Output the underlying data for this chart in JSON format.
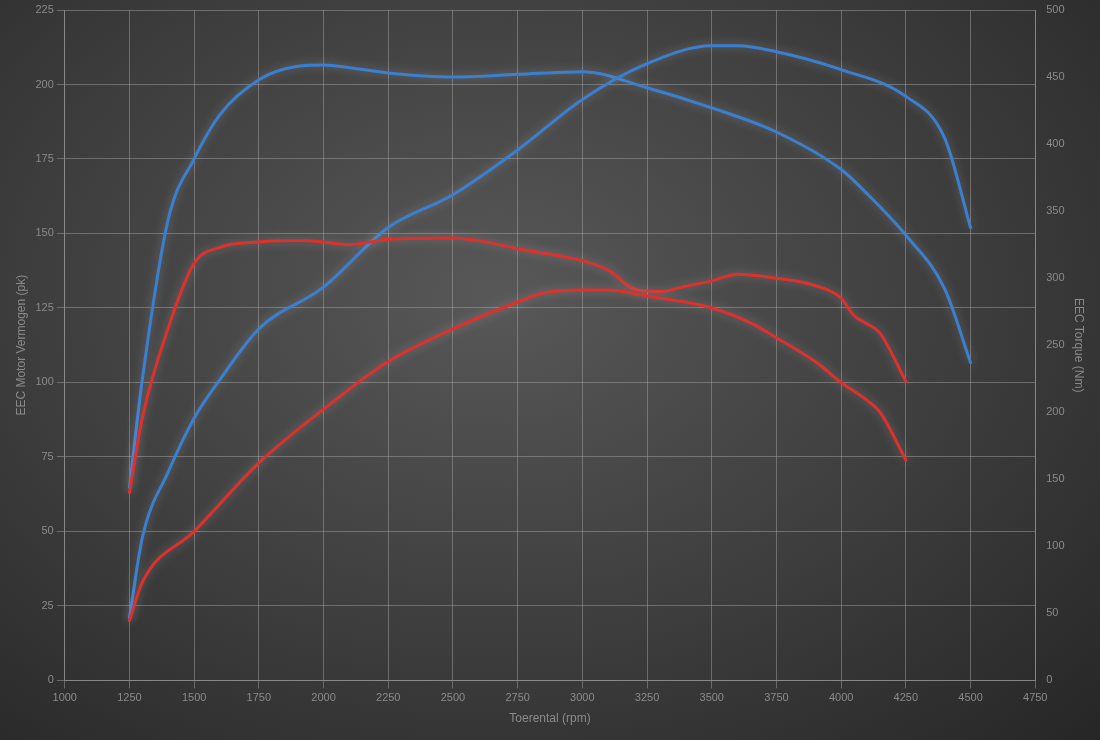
{
  "chart_data": {
    "type": "line",
    "xlabel": "Toerental (rpm)",
    "ylabel": "EEC Motor Vermogen (pk)",
    "y2label": "EEC Torque (Nm)",
    "xlim": [
      1000,
      4750
    ],
    "xticks": [
      1000,
      1250,
      1500,
      1750,
      2000,
      2250,
      2500,
      2750,
      3000,
      3250,
      3500,
      3750,
      4000,
      4250,
      4500,
      4750
    ],
    "ylim": [
      0,
      225
    ],
    "yticks": [
      0,
      25,
      50,
      75,
      100,
      125,
      150,
      175,
      200,
      225
    ],
    "y2lim": [
      0,
      500
    ],
    "y2ticks": [
      0,
      50,
      100,
      150,
      200,
      250,
      300,
      350,
      400,
      450,
      500
    ],
    "grid": true,
    "legend": false,
    "marker": "none",
    "line_style": "solid",
    "series": [
      {
        "color": "#e0302c",
        "axis": "y",
        "x": [
          1250,
          1300,
          1500,
          1750,
          2000,
          2250,
          2500,
          2750,
          2850,
          3000,
          3100,
          3250,
          3500,
          3650,
          3750,
          3900,
          4000,
          4100,
          4150,
          4250
        ],
        "values": [
          20,
          33,
          50,
          73,
          91,
          107,
          118,
          127,
          130,
          131,
          131,
          129,
          125,
          120,
          115,
          107,
          100,
          94,
          90,
          74
        ]
      },
      {
        "color": "#e0302c",
        "axis": "y2",
        "x": [
          1250,
          1300,
          1400,
          1500,
          1600,
          1750,
          1900,
          2000,
          2100,
          2250,
          2500,
          2600,
          2750,
          3000,
          3100,
          3200,
          3300,
          3400,
          3500,
          3600,
          3750,
          3850,
          3950,
          4000,
          4050,
          4100,
          4150,
          4250
        ],
        "values": [
          140,
          196,
          263,
          311,
          323,
          327,
          328,
          327,
          325,
          329,
          330,
          328,
          322,
          313,
          306,
          292,
          290,
          294,
          298,
          303,
          300,
          297,
          291,
          285,
          272,
          266,
          259,
          223
        ]
      },
      {
        "color": "#3a80d2",
        "axis": "y",
        "x": [
          1250,
          1300,
          1400,
          1500,
          1600,
          1750,
          2000,
          2250,
          2500,
          2750,
          3000,
          3250,
          3500,
          3600,
          3750,
          4000,
          4250,
          4400,
          4500
        ],
        "values": [
          21,
          48,
          70,
          88,
          101,
          118,
          132,
          152,
          163,
          178,
          195,
          207,
          213,
          213,
          211,
          205,
          196,
          182,
          152
        ]
      },
      {
        "color": "#3a80d2",
        "axis": "y2",
        "x": [
          1250,
          1300,
          1400,
          1500,
          1600,
          1750,
          1900,
          2000,
          2100,
          2250,
          2500,
          2750,
          3000,
          3250,
          3500,
          3750,
          4000,
          4100,
          4250,
          4400,
          4500
        ],
        "values": [
          144,
          225,
          344,
          389,
          422,
          448,
          458,
          459,
          457,
          453,
          450,
          452,
          454,
          442,
          427,
          409,
          381,
          363,
          332,
          292,
          237
        ]
      }
    ]
  }
}
